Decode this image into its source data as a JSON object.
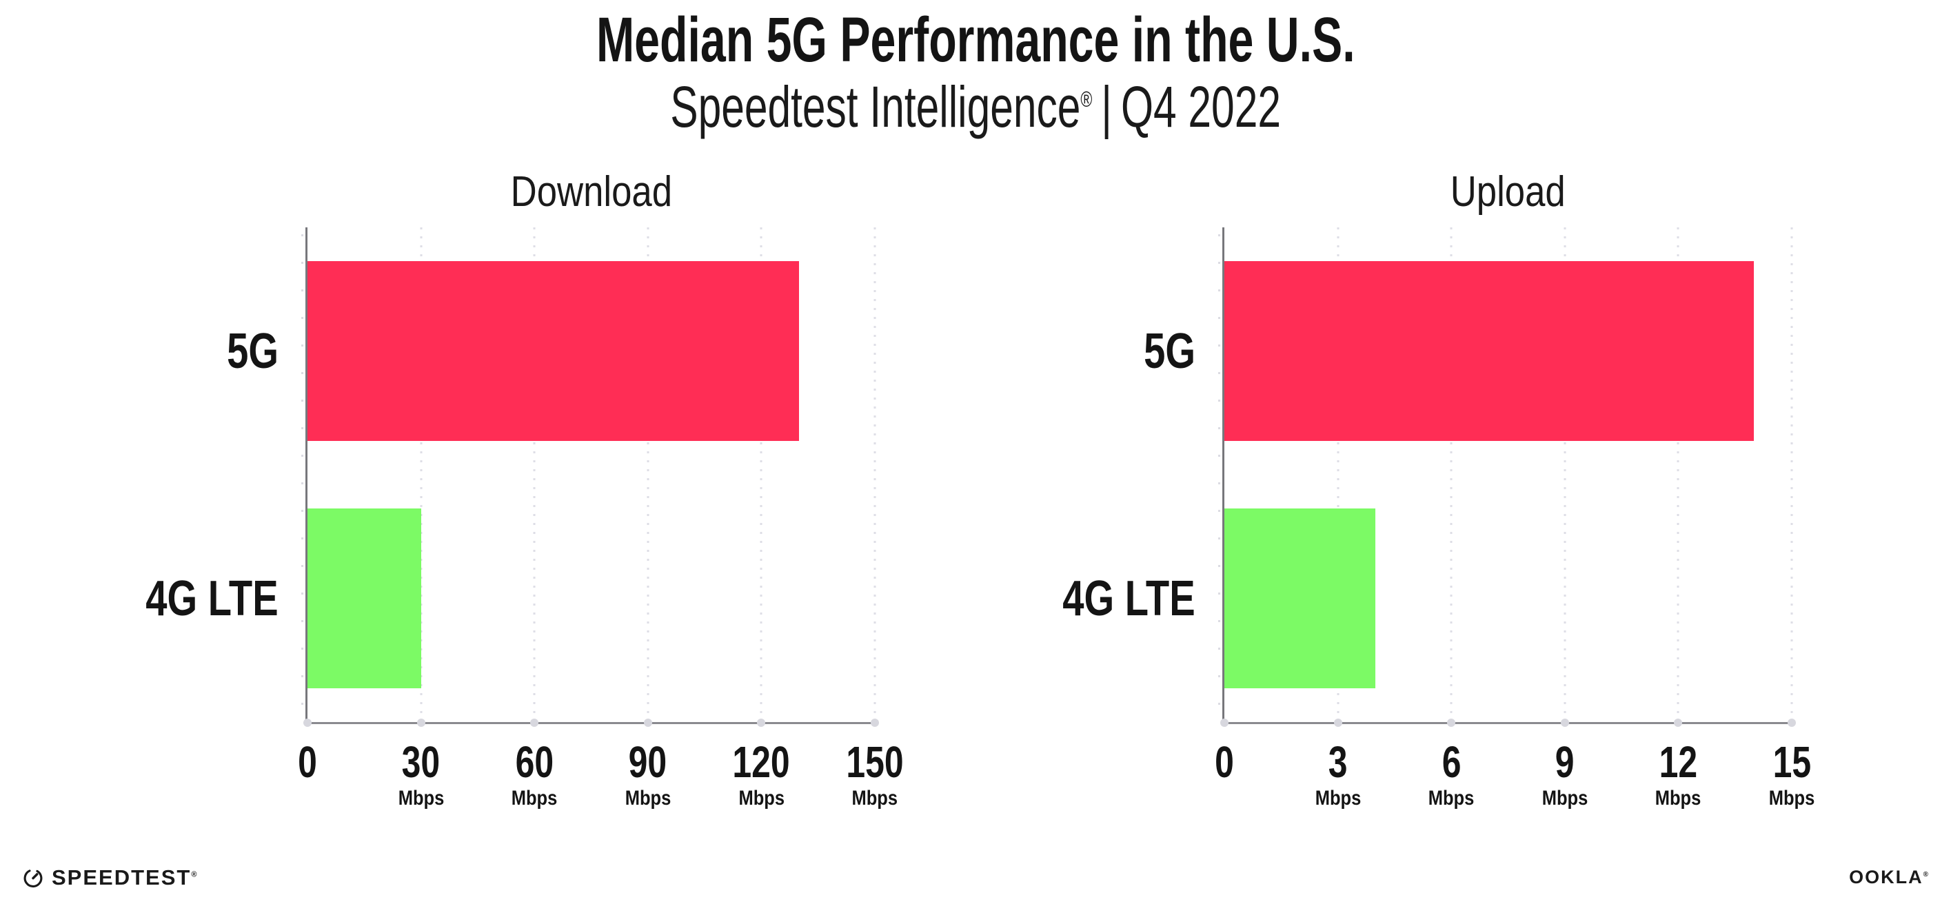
{
  "header": {
    "title": "Median 5G Performance in the U.S.",
    "subtitle": {
      "brand": "Speedtest Intelligence",
      "registered": "®",
      "separator": "|",
      "period": "Q4 2022"
    }
  },
  "chart_data": [
    {
      "type": "bar",
      "orientation": "horizontal",
      "title": "Download",
      "categories": [
        "5G",
        "4G LTE"
      ],
      "values": [
        130,
        30
      ],
      "value_unit": "Mbps",
      "xlim": [
        0,
        150
      ],
      "xticks": [
        0,
        30,
        60,
        90,
        120,
        150
      ],
      "tick_unit_label": "Mbps",
      "bar_colors": [
        "#FF2D55",
        "#7CFA65"
      ],
      "grid": "dotted-vertical",
      "legend": "none"
    },
    {
      "type": "bar",
      "orientation": "horizontal",
      "title": "Upload",
      "categories": [
        "5G",
        "4G LTE"
      ],
      "values": [
        14,
        4
      ],
      "value_unit": "Mbps",
      "xlim": [
        0,
        15
      ],
      "xticks": [
        0,
        3,
        6,
        9,
        12,
        15
      ],
      "tick_unit_label": "Mbps",
      "bar_colors": [
        "#FF2D55",
        "#7CFA65"
      ],
      "grid": "dotted-vertical",
      "legend": "none"
    }
  ],
  "footer": {
    "speedtest_logo_text": "SPEEDTEST",
    "speedtest_registered": "®",
    "ookla_logo_text": "OOKLA",
    "ookla_registered": "®"
  },
  "colors": {
    "bar_5g": "#FF2D55",
    "bar_4g_lte": "#7CFA65",
    "axis_y": "#77777c",
    "axis_x": "#8a8a8f",
    "gridline": "#dedee6",
    "text": "#141414"
  }
}
